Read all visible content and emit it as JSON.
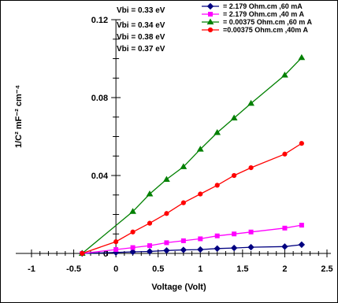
{
  "chart_data": {
    "type": "line",
    "title": "",
    "xlabel": "Voltage (Volt)",
    "ylabel": "1/C² mF⁻² cm⁻⁴",
    "xlim": [
      -1,
      2.5
    ],
    "ylim": [
      0,
      0.12
    ],
    "x_ticks": [
      "-1",
      "-0.5",
      "0",
      "0.5",
      "1",
      "1.5",
      "2",
      "2.5"
    ],
    "y_ticks": [
      "0",
      "0.04",
      "0.08",
      "0.12"
    ],
    "grid": false,
    "legend_position": "top-right",
    "annotations": [
      "Vbi = 0.33 eV",
      "Vbi = 0.34 eV",
      "Vbi = 0.38 eV",
      "Vbi = 0.37 eV"
    ],
    "series": [
      {
        "name": "= 2.179 Ohm.cm ,60 mA",
        "color": "#000080",
        "marker": "diamond",
        "x": [
          -0.4,
          0.0,
          0.2,
          0.4,
          0.6,
          0.8,
          1.0,
          1.2,
          1.4,
          1.6,
          2.0,
          2.2
        ],
        "y": [
          0.0,
          0.0005,
          0.0008,
          0.001,
          0.0015,
          0.0018,
          0.002,
          0.0025,
          0.0028,
          0.0032,
          0.0035,
          0.0045
        ]
      },
      {
        "name": "= 2.179 Ohm.cm ,40 m A",
        "color": "#ff00ff",
        "marker": "square",
        "x": [
          -0.4,
          0.0,
          0.2,
          0.4,
          0.6,
          0.8,
          1.0,
          1.2,
          1.4,
          1.6,
          2.0,
          2.2
        ],
        "y": [
          0.0,
          0.002,
          0.003,
          0.004,
          0.0055,
          0.0065,
          0.0075,
          0.009,
          0.01,
          0.011,
          0.013,
          0.0145
        ]
      },
      {
        "name": "= 0.00375 Ohm.cm ,60 m A",
        "color": "#008000",
        "marker": "triangle",
        "x": [
          -0.4,
          0.2,
          0.4,
          0.6,
          0.8,
          1.0,
          1.2,
          1.4,
          1.6,
          2.0,
          2.2
        ],
        "y": [
          0.0,
          0.0215,
          0.0305,
          0.038,
          0.0445,
          0.0535,
          0.062,
          0.0695,
          0.077,
          0.0915,
          0.1005
        ]
      },
      {
        "name": "=0.00375 Ohm.cm ,40m A",
        "color": "#ff0000",
        "marker": "circle",
        "x": [
          -0.4,
          0.0,
          0.2,
          0.4,
          0.6,
          0.8,
          1.0,
          1.2,
          1.4,
          1.6,
          2.0,
          2.2
        ],
        "y": [
          0.0,
          0.006,
          0.011,
          0.0155,
          0.0205,
          0.026,
          0.0305,
          0.035,
          0.04,
          0.044,
          0.051,
          0.0565
        ]
      }
    ]
  }
}
